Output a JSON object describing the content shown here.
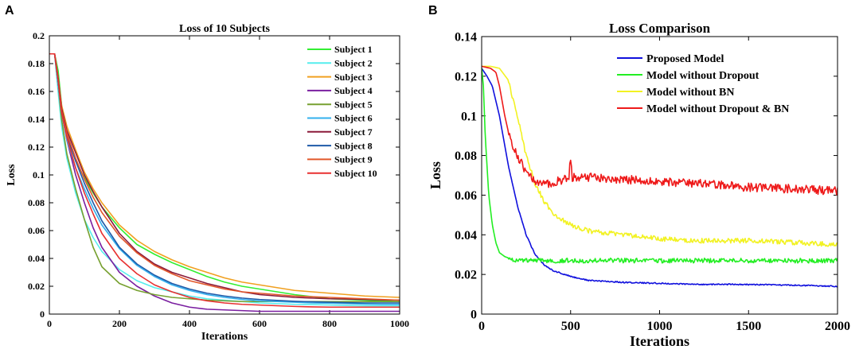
{
  "figure": {
    "panel_a_letter": "A",
    "panel_b_letter": "B"
  },
  "chart_data": [
    {
      "id": "A",
      "type": "line",
      "title": "Loss of 10 Subjects",
      "xlabel": "Iterations",
      "ylabel": "Loss",
      "xlim": [
        0,
        1000
      ],
      "ylim": [
        0,
        0.2
      ],
      "xticks": [
        0,
        200,
        400,
        600,
        800,
        1000
      ],
      "yticks": [
        0,
        0.02,
        0.04,
        0.06,
        0.08,
        0.1,
        0.12,
        0.14,
        0.16,
        0.18,
        0.2
      ],
      "ytick_labels": [
        "0",
        "0.02",
        "0.04",
        "0.06",
        "0.08",
        "0.1",
        "0.12",
        "0.14",
        "0.16",
        "0.18",
        "0.2"
      ],
      "legend_position": "top-right",
      "series": [
        {
          "name": "Subject 1",
          "color": "#33ee33",
          "x": [
            0,
            15,
            25,
            35,
            50,
            75,
            100,
            125,
            150,
            200,
            250,
            300,
            350,
            400,
            450,
            500,
            550,
            600,
            650,
            700,
            750,
            800,
            850,
            900,
            950,
            1000
          ],
          "y": [
            0.187,
            0.187,
            0.175,
            0.15,
            0.13,
            0.11,
            0.098,
            0.087,
            0.077,
            0.062,
            0.05,
            0.043,
            0.037,
            0.032,
            0.027,
            0.023,
            0.02,
            0.018,
            0.016,
            0.014,
            0.0125,
            0.011,
            0.0105,
            0.01,
            0.0095,
            0.009
          ]
        },
        {
          "name": "Subject 2",
          "color": "#55eeee",
          "x": [
            0,
            15,
            25,
            35,
            50,
            75,
            100,
            125,
            150,
            200,
            250,
            300,
            350,
            400,
            450,
            500,
            550,
            600,
            650,
            700,
            750,
            800,
            850,
            900,
            950,
            1000
          ],
          "y": [
            0.187,
            0.187,
            0.16,
            0.135,
            0.112,
            0.087,
            0.068,
            0.055,
            0.045,
            0.032,
            0.024,
            0.019,
            0.016,
            0.013,
            0.011,
            0.01,
            0.009,
            0.008,
            0.0075,
            0.007,
            0.0068,
            0.0065,
            0.0062,
            0.006,
            0.006,
            0.006
          ]
        },
        {
          "name": "Subject 3",
          "color": "#f0a020",
          "x": [
            0,
            15,
            25,
            35,
            50,
            75,
            100,
            125,
            150,
            200,
            250,
            300,
            350,
            400,
            450,
            500,
            550,
            600,
            650,
            700,
            750,
            800,
            850,
            900,
            950,
            1000
          ],
          "y": [
            0.187,
            0.187,
            0.17,
            0.15,
            0.135,
            0.118,
            0.102,
            0.09,
            0.08,
            0.064,
            0.053,
            0.045,
            0.039,
            0.034,
            0.03,
            0.026,
            0.023,
            0.021,
            0.019,
            0.017,
            0.016,
            0.015,
            0.014,
            0.013,
            0.0125,
            0.012
          ]
        },
        {
          "name": "Subject 4",
          "color": "#7a1fa0",
          "x": [
            0,
            15,
            25,
            35,
            50,
            75,
            100,
            125,
            150,
            200,
            250,
            300,
            350,
            400,
            450,
            500,
            550,
            600,
            650,
            700,
            750,
            800,
            850,
            900,
            950,
            1000
          ],
          "y": [
            0.187,
            0.187,
            0.165,
            0.145,
            0.125,
            0.1,
            0.08,
            0.062,
            0.048,
            0.03,
            0.02,
            0.013,
            0.008,
            0.005,
            0.0035,
            0.003,
            0.0025,
            0.002,
            0.002,
            0.002,
            0.002,
            0.002,
            0.002,
            0.002,
            0.002,
            0.002
          ]
        },
        {
          "name": "Subject 5",
          "color": "#77a030",
          "x": [
            0,
            15,
            25,
            35,
            50,
            75,
            100,
            125,
            150,
            200,
            250,
            300,
            350,
            400,
            450,
            500,
            550,
            600,
            650,
            700,
            750,
            800,
            850,
            900,
            950,
            1000
          ],
          "y": [
            0.187,
            0.187,
            0.165,
            0.14,
            0.115,
            0.09,
            0.068,
            0.048,
            0.034,
            0.022,
            0.017,
            0.014,
            0.012,
            0.011,
            0.01,
            0.0095,
            0.009,
            0.009,
            0.009,
            0.009,
            0.009,
            0.009,
            0.009,
            0.009,
            0.009,
            0.009
          ]
        },
        {
          "name": "Subject 6",
          "color": "#33b0ee",
          "x": [
            0,
            15,
            25,
            35,
            50,
            75,
            100,
            125,
            150,
            200,
            250,
            300,
            350,
            400,
            450,
            500,
            550,
            600,
            650,
            700,
            750,
            800,
            850,
            900,
            950,
            1000
          ],
          "y": [
            0.187,
            0.187,
            0.165,
            0.145,
            0.125,
            0.105,
            0.09,
            0.076,
            0.064,
            0.047,
            0.035,
            0.027,
            0.021,
            0.017,
            0.014,
            0.012,
            0.0105,
            0.0095,
            0.009,
            0.0085,
            0.008,
            0.0078,
            0.0075,
            0.0072,
            0.007,
            0.007
          ]
        },
        {
          "name": "Subject 7",
          "color": "#8b1a3a",
          "x": [
            0,
            15,
            25,
            35,
            50,
            75,
            100,
            125,
            150,
            200,
            250,
            300,
            350,
            400,
            450,
            500,
            550,
            600,
            650,
            700,
            750,
            800,
            850,
            900,
            950,
            1000
          ],
          "y": [
            0.187,
            0.187,
            0.17,
            0.148,
            0.132,
            0.116,
            0.1,
            0.088,
            0.077,
            0.058,
            0.045,
            0.036,
            0.03,
            0.026,
            0.022,
            0.019,
            0.016,
            0.014,
            0.013,
            0.012,
            0.0115,
            0.011,
            0.0108,
            0.0105,
            0.0102,
            0.01
          ]
        },
        {
          "name": "Subject 8",
          "color": "#1e5aa8",
          "x": [
            0,
            15,
            25,
            35,
            50,
            75,
            100,
            125,
            150,
            200,
            250,
            300,
            350,
            400,
            450,
            500,
            550,
            600,
            650,
            700,
            750,
            800,
            850,
            900,
            950,
            1000
          ],
          "y": [
            0.187,
            0.187,
            0.168,
            0.145,
            0.128,
            0.11,
            0.094,
            0.08,
            0.067,
            0.048,
            0.036,
            0.028,
            0.022,
            0.018,
            0.015,
            0.013,
            0.0115,
            0.0105,
            0.0098,
            0.0092,
            0.0088,
            0.0085,
            0.0082,
            0.008,
            0.008,
            0.008
          ]
        },
        {
          "name": "Subject 9",
          "color": "#e2572a",
          "x": [
            0,
            15,
            25,
            35,
            50,
            75,
            100,
            125,
            150,
            200,
            250,
            300,
            350,
            400,
            450,
            500,
            550,
            600,
            650,
            700,
            750,
            800,
            850,
            900,
            950,
            1000
          ],
          "y": [
            0.187,
            0.187,
            0.168,
            0.146,
            0.13,
            0.112,
            0.097,
            0.084,
            0.073,
            0.056,
            0.044,
            0.035,
            0.029,
            0.024,
            0.021,
            0.018,
            0.016,
            0.015,
            0.014,
            0.013,
            0.0125,
            0.012,
            0.0115,
            0.011,
            0.0105,
            0.01
          ]
        },
        {
          "name": "Subject 10",
          "color": "#e83030",
          "x": [
            0,
            15,
            25,
            35,
            50,
            75,
            100,
            125,
            150,
            200,
            250,
            300,
            350,
            400,
            450,
            500,
            550,
            600,
            650,
            700,
            750,
            800,
            850,
            900,
            950,
            1000
          ],
          "y": [
            0.187,
            0.187,
            0.168,
            0.145,
            0.127,
            0.105,
            0.087,
            0.072,
            0.058,
            0.04,
            0.029,
            0.021,
            0.016,
            0.012,
            0.0095,
            0.008,
            0.007,
            0.0065,
            0.006,
            0.0055,
            0.0052,
            0.005,
            0.005,
            0.005,
            0.005,
            0.005
          ]
        }
      ]
    },
    {
      "id": "B",
      "type": "line",
      "title": "Loss Comparison",
      "xlabel": "Iterations",
      "ylabel": "Loss",
      "xlim": [
        0,
        2000
      ],
      "ylim": [
        0,
        0.14
      ],
      "xticks": [
        0,
        500,
        1000,
        1500,
        2000
      ],
      "yticks": [
        0,
        0.02,
        0.04,
        0.06,
        0.08,
        0.1,
        0.12,
        0.14
      ],
      "ytick_labels": [
        "0",
        "0.02",
        "0.04",
        "0.06",
        "0.08",
        "0.1",
        "0.12",
        "0.14"
      ],
      "legend_position": "top-right",
      "series": [
        {
          "name": "Proposed Model",
          "color": "#1010dd",
          "noise": 0.0003,
          "x": [
            0,
            30,
            60,
            100,
            150,
            200,
            250,
            300,
            350,
            400,
            500,
            600,
            700,
            800,
            1000,
            1200,
            1400,
            1600,
            1800,
            2000
          ],
          "y": [
            0.124,
            0.12,
            0.115,
            0.1,
            0.075,
            0.055,
            0.04,
            0.03,
            0.025,
            0.022,
            0.019,
            0.017,
            0.0165,
            0.016,
            0.0155,
            0.015,
            0.015,
            0.0148,
            0.0145,
            0.014
          ]
        },
        {
          "name": "Model without Dropout",
          "color": "#22ee22",
          "noise": 0.0012,
          "x": [
            0,
            10,
            20,
            40,
            60,
            80,
            100,
            130,
            160,
            200,
            300,
            500,
            1000,
            1500,
            2000
          ],
          "y": [
            0.124,
            0.115,
            0.09,
            0.06,
            0.045,
            0.036,
            0.031,
            0.029,
            0.028,
            0.027,
            0.027,
            0.027,
            0.027,
            0.027,
            0.027
          ]
        },
        {
          "name": "Model without BN",
          "color": "#f2f222",
          "noise": 0.0012,
          "x": [
            0,
            50,
            100,
            150,
            200,
            250,
            300,
            350,
            400,
            500,
            600,
            700,
            800,
            1000,
            1200,
            1500,
            1800,
            2000
          ],
          "y": [
            0.125,
            0.125,
            0.124,
            0.118,
            0.1,
            0.08,
            0.066,
            0.057,
            0.051,
            0.045,
            0.042,
            0.041,
            0.04,
            0.038,
            0.037,
            0.037,
            0.036,
            0.035
          ]
        },
        {
          "name": "Model without Dropout & BN",
          "color": "#ee1a1a",
          "noise": 0.0022,
          "x": [
            0,
            50,
            80,
            100,
            130,
            160,
            200,
            250,
            300,
            340,
            380,
            420,
            500,
            600,
            800,
            1000,
            1200,
            1500,
            1800,
            2000
          ],
          "y": [
            0.125,
            0.124,
            0.122,
            0.115,
            0.1,
            0.088,
            0.08,
            0.072,
            0.066,
            0.065,
            0.066,
            0.067,
            0.069,
            0.069,
            0.068,
            0.067,
            0.066,
            0.064,
            0.063,
            0.062
          ]
        }
      ]
    }
  ]
}
